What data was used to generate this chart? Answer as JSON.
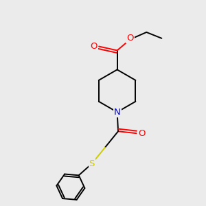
{
  "background_color": "#ebebeb",
  "atom_colors": {
    "C": "#000000",
    "N": "#0000cc",
    "O": "#ff0000",
    "S": "#cccc00"
  },
  "figsize": [
    3.0,
    3.0
  ],
  "dpi": 100,
  "lw": 1.4,
  "fontsize": 9.5
}
